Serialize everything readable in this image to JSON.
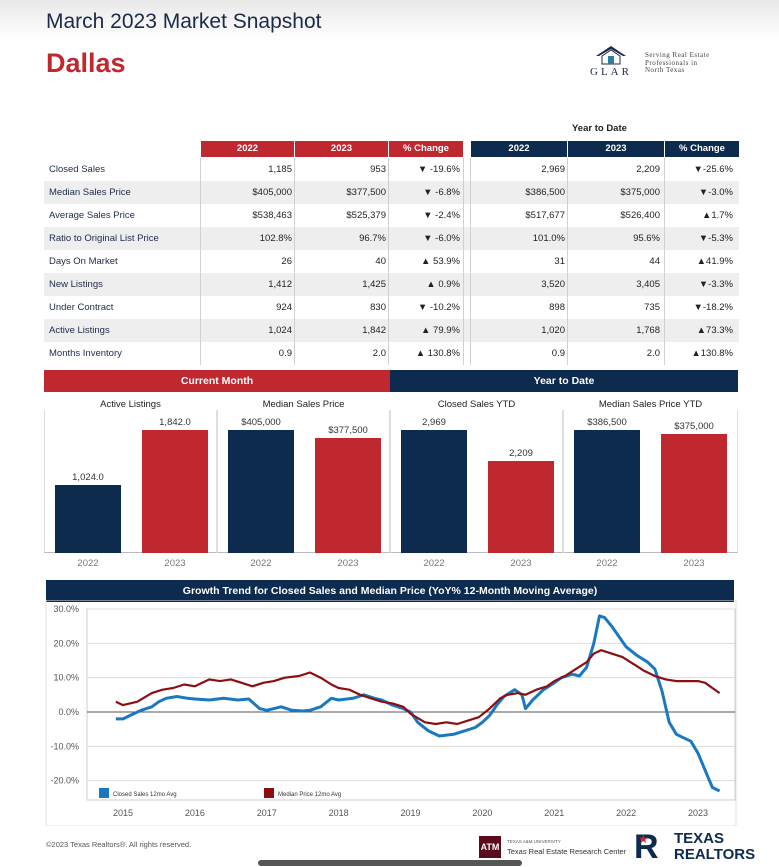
{
  "header": {
    "title": "March 2023 Market Snapshot",
    "city": "Dallas",
    "logo_text": "GLAR",
    "logo_tagline": [
      "Serving Real Estate",
      "Professionals in",
      "North Texas"
    ]
  },
  "table": {
    "ytd_label": "Year to Date",
    "headers": [
      "2022",
      "2023",
      "% Change",
      "2022",
      "2023",
      "% Change"
    ],
    "rows": [
      {
        "label": "Closed Sales",
        "m22": "1,185",
        "m23": "953",
        "mchg": "▼ -19.6%",
        "y22": "2,969",
        "y23": "2,209",
        "ychg": "▼-25.6%"
      },
      {
        "label": "Median Sales Price",
        "m22": "$405,000",
        "m23": "$377,500",
        "mchg": "▼ -6.8%",
        "y22": "$386,500",
        "y23": "$375,000",
        "ychg": "▼-3.0%"
      },
      {
        "label": "Average Sales Price",
        "m22": "$538,463",
        "m23": "$525,379",
        "mchg": "▼ -2.4%",
        "y22": "$517,677",
        "y23": "$526,400",
        "ychg": "▲1.7%"
      },
      {
        "label": "Ratio to Original List Price",
        "m22": "102.8%",
        "m23": "96.7%",
        "mchg": "▼ -6.0%",
        "y22": "101.0%",
        "y23": "95.6%",
        "ychg": "▼-5.3%"
      },
      {
        "label": "Days On Market",
        "m22": "26",
        "m23": "40",
        "mchg": "▲ 53.9%",
        "y22": "31",
        "y23": "44",
        "ychg": "▲41.9%"
      },
      {
        "label": "New Listings",
        "m22": "1,412",
        "m23": "1,425",
        "mchg": "▲ 0.9%",
        "y22": "3,520",
        "y23": "3,405",
        "ychg": "▼-3.3%"
      },
      {
        "label": "Under Contract",
        "m22": "924",
        "m23": "830",
        "mchg": "▼ -10.2%",
        "y22": "898",
        "y23": "735",
        "ychg": "▼-18.2%"
      },
      {
        "label": "Active Listings",
        "m22": "1,024",
        "m23": "1,842",
        "mchg": "▲ 79.9%",
        "y22": "1,020",
        "y23": "1,768",
        "ychg": "▲73.3%"
      },
      {
        "label": "Months Inventory",
        "m22": "0.9",
        "m23": "2.0",
        "mchg": "▲ 130.8%",
        "y22": "0.9",
        "y23": "2.0",
        "ychg": "▲130.8%"
      }
    ]
  },
  "banners": {
    "current": "Current Month",
    "ytd": "Year to Date"
  },
  "colors": {
    "navy": "#0d2a4f",
    "red": "#c0282f",
    "closed_line": "#1a78c2",
    "median_line": "#8b0f12"
  },
  "chart_data": [
    {
      "type": "bar",
      "title": "Active Listings",
      "categories": [
        "2022",
        "2023"
      ],
      "values": [
        1024.0,
        1842.0
      ],
      "labels": [
        "1,024.0",
        "1,842.0"
      ],
      "ylim": [
        0,
        1842
      ]
    },
    {
      "type": "bar",
      "title": "Median Sales Price",
      "categories": [
        "2022",
        "2023"
      ],
      "values": [
        405000,
        377500
      ],
      "labels": [
        "$405,000",
        "$377,500"
      ],
      "ylim": [
        0,
        405000
      ]
    },
    {
      "type": "bar",
      "title": "Closed Sales YTD",
      "categories": [
        "2022",
        "2023"
      ],
      "values": [
        2969,
        2209
      ],
      "labels": [
        "2,969",
        "2,209"
      ],
      "ylim": [
        0,
        2969
      ]
    },
    {
      "type": "bar",
      "title": "Median Sales Price YTD",
      "categories": [
        "2022",
        "2023"
      ],
      "values": [
        386500,
        375000
      ],
      "labels": [
        "$386,500",
        "$375,000"
      ],
      "ylim": [
        0,
        386500
      ]
    },
    {
      "type": "line",
      "title": "Growth Trend for Closed Sales and Median Price (YoY% 12-Month Moving Average)",
      "ylim": [
        -20,
        30
      ],
      "yticks": [
        "30.0%",
        "20.0%",
        "10.0%",
        "0.0%",
        "-10.0%",
        "-20.0%"
      ],
      "ytick_values": [
        30,
        20,
        10,
        0,
        -10,
        -20
      ],
      "xticks": [
        "2015",
        "2016",
        "2017",
        "2018",
        "2019",
        "2020",
        "2021",
        "2022",
        "2023"
      ],
      "xlim": [
        2014.9,
        2023.1
      ],
      "legend": "bottom-left",
      "series": [
        {
          "name": "Closed Sales 12mo Avg",
          "points": [
            [
              2014.9,
              -2.0
            ],
            [
              2015.0,
              -2.0
            ],
            [
              2015.1,
              -1.0
            ],
            [
              2015.25,
              0.5
            ],
            [
              2015.4,
              1.5
            ],
            [
              2015.5,
              3.0
            ],
            [
              2015.6,
              4.0
            ],
            [
              2015.75,
              4.5
            ],
            [
              2015.9,
              4.0
            ],
            [
              2016.0,
              3.8
            ],
            [
              2016.2,
              3.5
            ],
            [
              2016.4,
              4.0
            ],
            [
              2016.6,
              3.5
            ],
            [
              2016.75,
              3.8
            ],
            [
              2016.9,
              1.0
            ],
            [
              2017.0,
              0.5
            ],
            [
              2017.2,
              1.5
            ],
            [
              2017.35,
              0.5
            ],
            [
              2017.5,
              0.3
            ],
            [
              2017.6,
              0.5
            ],
            [
              2017.75,
              1.5
            ],
            [
              2017.9,
              4.0
            ],
            [
              2018.0,
              3.5
            ],
            [
              2018.2,
              4.0
            ],
            [
              2018.35,
              5.0
            ],
            [
              2018.5,
              4.0
            ],
            [
              2018.6,
              3.5
            ],
            [
              2018.75,
              2.0
            ],
            [
              2018.9,
              1.0
            ],
            [
              2019.0,
              0.0
            ],
            [
              2019.1,
              -3.0
            ],
            [
              2019.25,
              -5.5
            ],
            [
              2019.4,
              -7.0
            ],
            [
              2019.6,
              -6.5
            ],
            [
              2019.75,
              -5.5
            ],
            [
              2019.9,
              -4.5
            ],
            [
              2020.0,
              -3.0
            ],
            [
              2020.1,
              -1.0
            ],
            [
              2020.2,
              2.0
            ],
            [
              2020.3,
              4.5
            ],
            [
              2020.45,
              6.5
            ],
            [
              2020.55,
              5.0
            ],
            [
              2020.6,
              1.0
            ],
            [
              2020.7,
              3.5
            ],
            [
              2020.85,
              6.5
            ],
            [
              2021.0,
              8.5
            ],
            [
              2021.1,
              10.0
            ],
            [
              2021.25,
              11.0
            ],
            [
              2021.35,
              10.5
            ],
            [
              2021.45,
              13.0
            ],
            [
              2021.55,
              20.0
            ],
            [
              2021.63,
              28.0
            ],
            [
              2021.7,
              27.5
            ],
            [
              2021.8,
              25.0
            ],
            [
              2021.9,
              22.0
            ],
            [
              2022.0,
              19.0
            ],
            [
              2022.15,
              16.5
            ],
            [
              2022.3,
              14.5
            ],
            [
              2022.4,
              12.5
            ],
            [
              2022.5,
              6.0
            ],
            [
              2022.6,
              -3.0
            ],
            [
              2022.7,
              -6.5
            ],
            [
              2022.8,
              -7.5
            ],
            [
              2022.9,
              -8.5
            ],
            [
              2023.0,
              -12.0
            ],
            [
              2023.1,
              -17.0
            ],
            [
              2023.2,
              -22.0
            ],
            [
              2023.3,
              -23.0
            ]
          ]
        },
        {
          "name": "Median Price 12mo Avg",
          "points": [
            [
              2014.9,
              3.0
            ],
            [
              2015.0,
              2.0
            ],
            [
              2015.2,
              3.0
            ],
            [
              2015.4,
              5.5
            ],
            [
              2015.55,
              6.5
            ],
            [
              2015.7,
              7.0
            ],
            [
              2015.85,
              8.0
            ],
            [
              2016.0,
              7.5
            ],
            [
              2016.2,
              9.5
            ],
            [
              2016.35,
              9.0
            ],
            [
              2016.5,
              9.5
            ],
            [
              2016.65,
              8.5
            ],
            [
              2016.8,
              7.5
            ],
            [
              2016.95,
              8.5
            ],
            [
              2017.1,
              9.0
            ],
            [
              2017.25,
              10.0
            ],
            [
              2017.45,
              10.5
            ],
            [
              2017.6,
              11.5
            ],
            [
              2017.75,
              10.0
            ],
            [
              2017.9,
              8.0
            ],
            [
              2018.0,
              7.0
            ],
            [
              2018.15,
              6.5
            ],
            [
              2018.3,
              5.0
            ],
            [
              2018.45,
              4.0
            ],
            [
              2018.6,
              3.0
            ],
            [
              2018.75,
              2.5
            ],
            [
              2018.9,
              1.5
            ],
            [
              2019.0,
              -0.5
            ],
            [
              2019.2,
              -3.0
            ],
            [
              2019.35,
              -3.5
            ],
            [
              2019.5,
              -3.0
            ],
            [
              2019.65,
              -3.5
            ],
            [
              2019.8,
              -2.5
            ],
            [
              2019.95,
              -1.5
            ],
            [
              2020.1,
              1.0
            ],
            [
              2020.25,
              4.0
            ],
            [
              2020.35,
              5.0
            ],
            [
              2020.5,
              5.5
            ],
            [
              2020.6,
              5.0
            ],
            [
              2020.75,
              6.5
            ],
            [
              2020.9,
              7.5
            ],
            [
              2021.0,
              9.0
            ],
            [
              2021.15,
              10.5
            ],
            [
              2021.3,
              12.5
            ],
            [
              2021.45,
              14.5
            ],
            [
              2021.55,
              17.0
            ],
            [
              2021.65,
              18.0
            ],
            [
              2021.8,
              17.0
            ],
            [
              2021.95,
              16.0
            ],
            [
              2022.1,
              14.0
            ],
            [
              2022.25,
              12.0
            ],
            [
              2022.4,
              10.5
            ],
            [
              2022.55,
              9.5
            ],
            [
              2022.7,
              9.0
            ],
            [
              2022.85,
              9.0
            ],
            [
              2023.0,
              9.0
            ],
            [
              2023.1,
              8.5
            ],
            [
              2023.2,
              7.0
            ],
            [
              2023.3,
              5.5
            ]
          ]
        }
      ]
    }
  ],
  "footer": {
    "copyright": "©2023 Texas Realtors®. All rights reserved.",
    "tamu_small": "TEXAS A&M UNIVERSITY",
    "tamu_center": "Texas Real Estate Research Center",
    "tamu_mark": "ATM",
    "tr_word1": "TEXAS",
    "tr_word2": "REALTORS"
  }
}
